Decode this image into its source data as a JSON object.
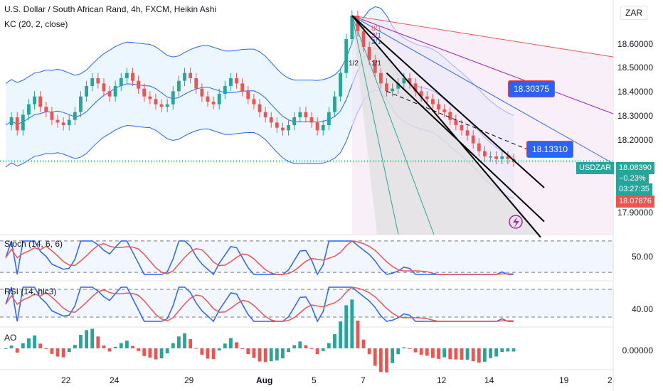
{
  "header": {
    "title": "U.S. Dollar / South African Rand, 4h, FXCM, Heikin Ashi",
    "indicator": "KC (20, 2, close)",
    "currency": "ZAR"
  },
  "price_axis": {
    "labels": [
      "18.60000",
      "18.50000",
      "18.40000",
      "18.30000",
      "18.20000",
      "17.90000"
    ]
  },
  "callouts": {
    "upper": "18.30375",
    "lower": "18.13310"
  },
  "symbol_tag": {
    "symbol": "USDZAR",
    "price": "18.08390",
    "change": "−0.23%",
    "countdown": "03:27:35",
    "low_price": "18.07876"
  },
  "fib_labels": [
    "8/1",
    "3/1",
    "2/1",
    "1/2",
    "1/1"
  ],
  "stoch": {
    "label": "Stoch (14, 6, 6)",
    "axis": "50.00"
  },
  "rsi": {
    "label": "RSI (14, hlc3)",
    "axis": "40.00"
  },
  "ao": {
    "label": "AO",
    "axis": "0.00000"
  },
  "x_axis": {
    "labels": [
      "22",
      "24",
      "29",
      "Aug",
      "5",
      "7",
      "12",
      "14",
      "19",
      "2"
    ]
  },
  "colors": {
    "up": "#26a69a",
    "down": "#ef5350",
    "kc": "#2962ff",
    "accent": "#2962ff"
  },
  "chart_data": {
    "type": "candlestick",
    "title": "U.S. Dollar / South African Rand, 4h, FXCM, Heikin Ashi",
    "ylim": [
      17.8,
      18.7
    ],
    "close_series": [
      18.22,
      18.25,
      18.2,
      18.26,
      18.3,
      18.33,
      18.29,
      18.27,
      18.24,
      18.23,
      18.22,
      18.24,
      18.27,
      18.33,
      18.37,
      18.4,
      18.38,
      18.35,
      18.33,
      18.37,
      18.4,
      18.42,
      18.39,
      18.36,
      18.33,
      18.32,
      18.3,
      18.29,
      18.3,
      18.35,
      18.39,
      18.42,
      18.4,
      18.36,
      18.33,
      18.31,
      18.3,
      18.34,
      18.37,
      18.4,
      18.38,
      18.35,
      18.32,
      18.3,
      18.27,
      18.25,
      18.23,
      18.21,
      18.2,
      18.22,
      18.25,
      18.27,
      18.25,
      18.23,
      18.2,
      18.22,
      18.27,
      18.33,
      18.42,
      18.55,
      18.64,
      18.58,
      18.52,
      18.47,
      18.42,
      18.38,
      18.35,
      18.36,
      18.38,
      18.4,
      18.38,
      18.35,
      18.33,
      18.32,
      18.3,
      18.28,
      18.27,
      18.24,
      18.22,
      18.2,
      18.18,
      18.15,
      18.12,
      18.1,
      18.1,
      18.09,
      18.1,
      18.09,
      18.08
    ],
    "current_price": 18.0839,
    "low_price": 18.07876,
    "callout_levels": [
      18.30375,
      18.1331
    ],
    "x_ticks": [
      "22",
      "24",
      "29",
      "Aug",
      "5",
      "7",
      "12",
      "14",
      "19",
      "2"
    ]
  }
}
